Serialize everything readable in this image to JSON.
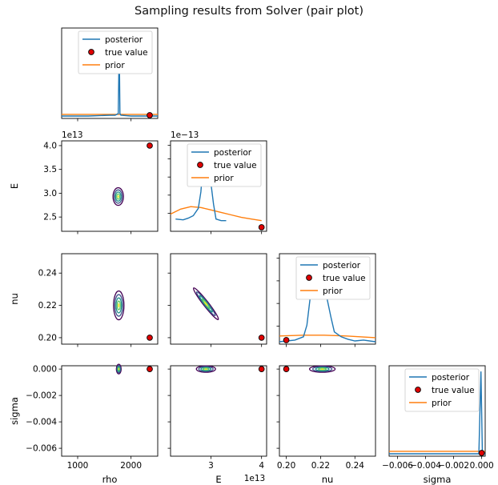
{
  "figure": {
    "title": "Sampling results from Solver (pair plot)",
    "variables": [
      "rho",
      "E",
      "nu",
      "sigma"
    ],
    "legend_entries": [
      "posterior",
      "true value",
      "prior"
    ],
    "colors": {
      "posterior": "#1f77b4",
      "prior": "#ff7f0e",
      "true_value_fill": "#e00000",
      "true_value_edge": "#000000",
      "contour": [
        "#440154",
        "#3b528b",
        "#21918c",
        "#5ec962",
        "#fde725"
      ]
    }
  },
  "chart_data": {
    "type": "pair-plot",
    "title": "Sampling results from Solver (pair plot)",
    "true_values": {
      "rho": 2350,
      "E": 40000000000000.0,
      "nu": 0.2,
      "sigma": 0.0
    },
    "axes": {
      "rho": {
        "label": "rho",
        "range": [
          700,
          2500
        ],
        "ticks": [
          1000,
          2000
        ],
        "tick_labels": [
          "1000",
          "2000"
        ]
      },
      "E": {
        "label": "E",
        "range": [
          22000000000000.0,
          41000000000000.0
        ],
        "ticks": [
          25000000000000.0,
          30000000000000.0,
          35000000000000.0,
          40000000000000.0
        ],
        "tick_labels": [
          "2.5",
          "3.0",
          "3.5",
          "4.0"
        ],
        "offset": "1e13"
      },
      "E_x": {
        "label": "E",
        "range": [
          22000000000000.0,
          41000000000000.0
        ],
        "ticks": [
          30000000000000.0,
          40000000000000.0
        ],
        "tick_labels": [
          "3",
          "4"
        ],
        "offset": "1e13"
      },
      "nu": {
        "label": "nu",
        "range": [
          0.196,
          0.252
        ],
        "ticks": [
          0.2,
          0.22,
          0.24
        ],
        "tick_labels": [
          "0.20",
          "0.22",
          "0.24"
        ]
      },
      "sigma": {
        "label": "sigma",
        "range": [
          -0.0066,
          0.00025
        ],
        "ticks": [
          -0.006,
          -0.004,
          -0.002,
          0.0
        ],
        "tick_labels": [
          "−0.006",
          "−0.004",
          "−0.002",
          "0.000"
        ]
      },
      "density_E_offset": "1e−13"
    },
    "posterior_peaks": {
      "rho": 1780,
      "E": 29200000000000.0,
      "nu": 0.22,
      "sigma": 0.0
    },
    "marginals": {
      "rho": {
        "posterior": {
          "x": [
            700,
            1200,
            1600,
            1700,
            1760,
            1772,
            1778,
            1784,
            1792,
            1810,
            2000,
            2500
          ],
          "y": [
            0.0,
            0.0,
            0.01,
            0.01,
            0.03,
            0.6,
            1.0,
            0.5,
            0.03,
            0.01,
            0.0,
            0.0
          ]
        },
        "prior": {
          "x": [
            700,
            2500
          ],
          "y": [
            0.02,
            0.02
          ]
        }
      },
      "E": {
        "posterior": {
          "x": [
            23000000000000.0,
            24500000000000.0,
            25500000000000.0,
            26500000000000.0,
            27500000000000.0,
            28000000000000.0,
            28400000000000.0,
            28700000000000.0,
            29000000000000.0,
            29300000000000.0,
            29600000000000.0,
            30000000000000.0,
            30500000000000.0,
            31000000000000.0,
            32000000000000.0,
            33000000000000.0
          ],
          "y": [
            0.12,
            0.11,
            0.13,
            0.16,
            0.25,
            0.45,
            0.75,
            0.95,
            0.7,
            0.98,
            0.8,
            0.55,
            0.3,
            0.12,
            0.1,
            0.1
          ]
        },
        "prior": {
          "x": [
            22000000000000.0,
            24000000000000.0,
            26000000000000.0,
            28000000000000.0,
            30000000000000.0,
            32000000000000.0,
            34000000000000.0,
            36000000000000.0,
            38000000000000.0,
            40000000000000.0
          ],
          "y": [
            0.18,
            0.24,
            0.27,
            0.26,
            0.23,
            0.2,
            0.17,
            0.14,
            0.12,
            0.1
          ]
        }
      },
      "nu": {
        "posterior": {
          "x": [
            0.196,
            0.205,
            0.21,
            0.212,
            0.214,
            0.216,
            0.218,
            0.22,
            0.222,
            0.224,
            0.226,
            0.228,
            0.232,
            0.236,
            0.24,
            0.245,
            0.252
          ],
          "y": [
            0.0,
            0.02,
            0.06,
            0.2,
            0.55,
            0.9,
            0.8,
            0.95,
            0.7,
            0.5,
            0.3,
            0.12,
            0.06,
            0.03,
            0.01,
            0.02,
            0.0
          ]
        },
        "prior": {
          "x": [
            0.196,
            0.21,
            0.222,
            0.235,
            0.252
          ],
          "y": [
            0.07,
            0.08,
            0.08,
            0.07,
            0.05
          ]
        }
      },
      "sigma": {
        "posterior": {
          "x": [
            -0.0066,
            -0.0002,
            -5e-05,
            5e-05,
            0.00025
          ],
          "y": [
            0.0,
            0.0,
            1.0,
            0.0,
            0.0
          ]
        },
        "prior": {
          "x": [
            -0.0066,
            0.00025
          ],
          "y": [
            0.03,
            0.03
          ]
        }
      }
    },
    "joint_modes": {
      "E_vs_rho": {
        "x": 1760,
        "y": 29300000000000.0
      },
      "nu_vs_rho": {
        "x": 1770,
        "y": 0.22
      },
      "nu_vs_E": {
        "x": 29000000000000.0,
        "y": 0.221
      },
      "sigma_vs_rho": {
        "x": 1770,
        "y": 0.0
      },
      "sigma_vs_E": {
        "x": 29000000000000.0,
        "y": 0.0
      },
      "sigma_vs_nu": {
        "x": 0.221,
        "y": 0.0
      }
    }
  }
}
